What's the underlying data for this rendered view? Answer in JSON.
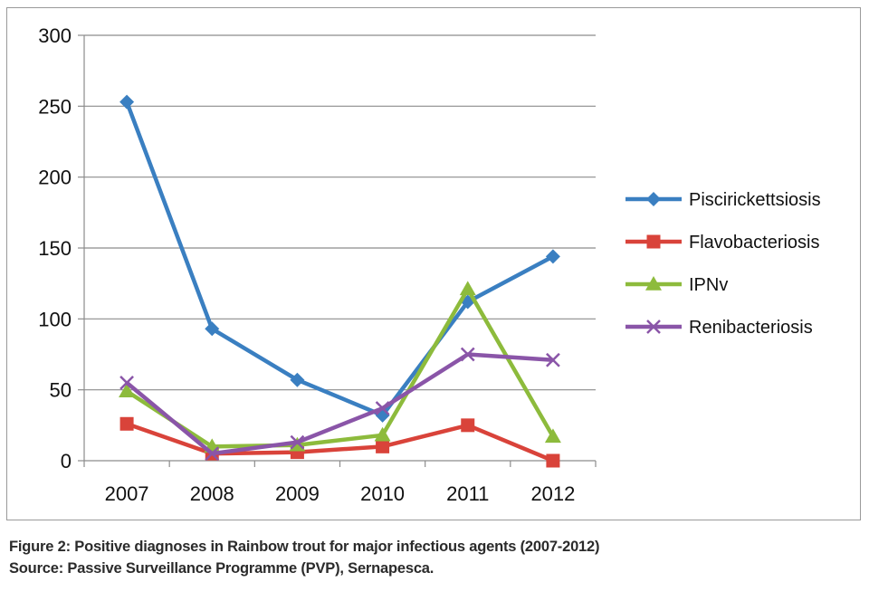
{
  "chart_data": {
    "type": "line",
    "categories": [
      "2007",
      "2008",
      "2009",
      "2010",
      "2011",
      "2012"
    ],
    "ylim": [
      0,
      300
    ],
    "yticks": [
      0,
      50,
      100,
      150,
      200,
      250,
      300
    ],
    "grid": "horizontal",
    "legend_position": "right",
    "series": [
      {
        "name": "Piscirickettsiosis",
        "values": [
          253,
          93,
          57,
          32,
          112,
          144
        ],
        "color": "#3a7fc1",
        "marker": "diamond"
      },
      {
        "name": "Flavobacteriosis",
        "values": [
          26,
          5,
          6,
          10,
          25,
          0
        ],
        "color": "#d9433a",
        "marker": "square"
      },
      {
        "name": "IPNv",
        "values": [
          49,
          10,
          11,
          18,
          121,
          17
        ],
        "color": "#8dbb3c",
        "marker": "triangle"
      },
      {
        "name": "Renibacteriosis",
        "values": [
          55,
          5,
          13,
          37,
          75,
          71
        ],
        "color": "#8a55a8",
        "marker": "x"
      }
    ]
  },
  "caption": {
    "line1": "Figure 2: Positive diagnoses in Rainbow trout for major infectious agents (2007-2012)",
    "line2": "Source: Passive Surveillance Programme (PVP), Sernapesca."
  }
}
